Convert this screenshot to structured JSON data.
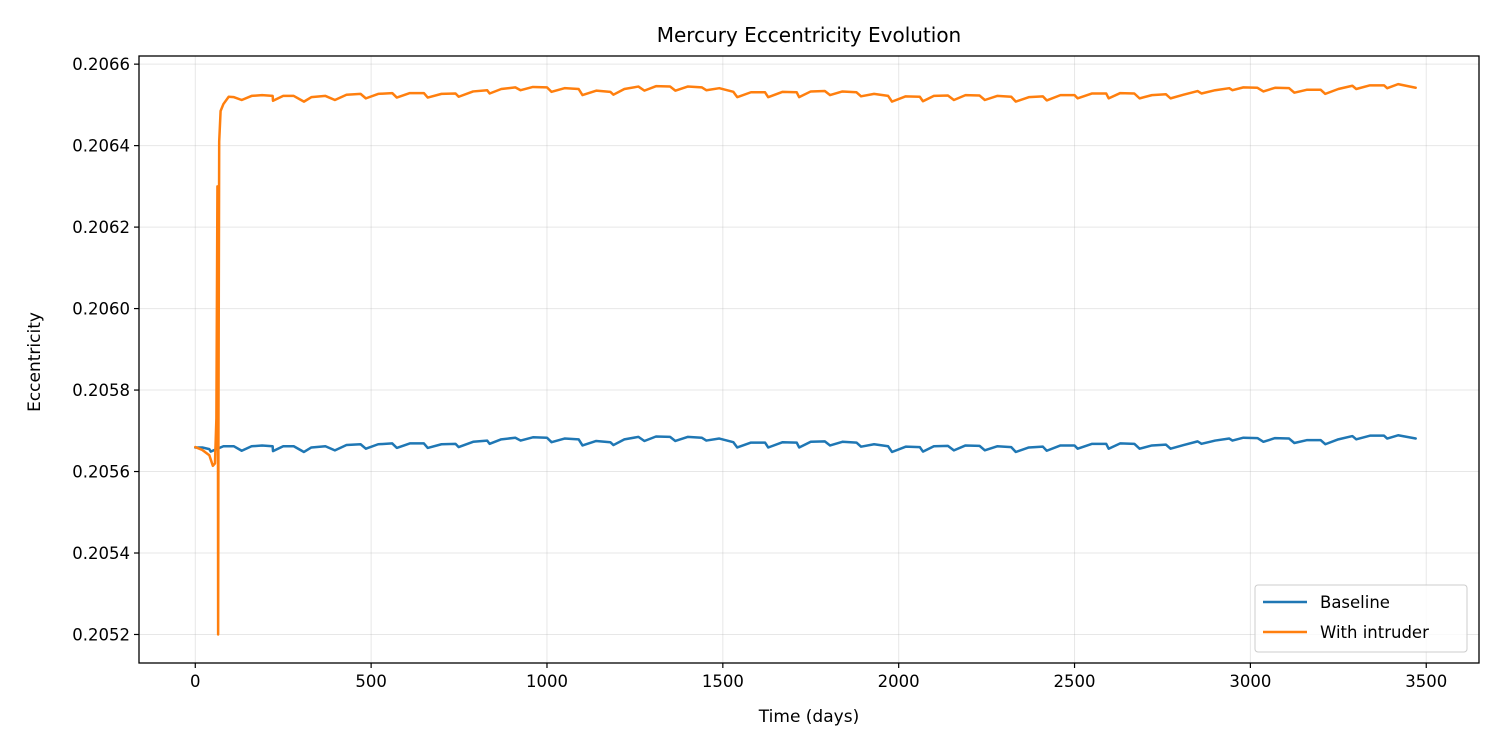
{
  "chart_data": {
    "type": "line",
    "title": "Mercury Eccentricity Evolution",
    "xlabel": "Time (days)",
    "ylabel": "Eccentricity",
    "xlim": [
      -160,
      3650
    ],
    "ylim": [
      0.20513,
      0.20662
    ],
    "xticks": [
      0,
      500,
      1000,
      1500,
      2000,
      2500,
      3000,
      3500
    ],
    "yticks": [
      0.2052,
      0.2054,
      0.2056,
      0.2058,
      0.206,
      0.2062,
      0.2064,
      0.2066
    ],
    "xtick_labels": [
      "0",
      "500",
      "1000",
      "1500",
      "2000",
      "2500",
      "3000",
      "3500"
    ],
    "ytick_labels": [
      "0.2052",
      "0.2054",
      "0.2056",
      "0.2058",
      "0.2060",
      "0.2062",
      "0.2064",
      "0.2066"
    ],
    "grid": true,
    "legend_position": "lower-right",
    "series": [
      {
        "name": "Baseline",
        "color": "#1f77b4",
        "x": [
          0,
          20,
          40,
          44,
          80,
          110,
          132,
          160,
          190,
          220,
          221,
          250,
          280,
          309,
          330,
          370,
          397,
          430,
          470,
          485,
          520,
          560,
          573,
          610,
          650,
          661,
          700,
          740,
          749,
          790,
          830,
          837,
          870,
          910,
          925,
          960,
          1000,
          1013,
          1050,
          1090,
          1101,
          1140,
          1180,
          1189,
          1220,
          1260,
          1277,
          1310,
          1350,
          1365,
          1400,
          1440,
          1453,
          1490,
          1530,
          1541,
          1580,
          1620,
          1629,
          1670,
          1710,
          1717,
          1750,
          1790,
          1805,
          1840,
          1880,
          1893,
          1930,
          1970,
          1981,
          2020,
          2060,
          2069,
          2100,
          2140,
          2157,
          2190,
          2230,
          2245,
          2280,
          2320,
          2333,
          2370,
          2410,
          2421,
          2460,
          2500,
          2509,
          2550,
          2590,
          2597,
          2630,
          2670,
          2685,
          2720,
          2760,
          2773,
          2810,
          2850,
          2861,
          2900,
          2940,
          2949,
          2980,
          3020,
          3037,
          3070,
          3110,
          3125,
          3160,
          3200,
          3213,
          3250,
          3290,
          3301,
          3340,
          3380,
          3389,
          3420,
          3470
        ],
        "y": [
          0.205659,
          0.205659,
          0.205655,
          0.205649,
          0.205662,
          0.205662,
          0.205651,
          0.205662,
          0.205664,
          0.205662,
          0.20565,
          0.205662,
          0.205662,
          0.205648,
          0.205659,
          0.205662,
          0.205652,
          0.205665,
          0.205667,
          0.205656,
          0.205667,
          0.205669,
          0.205658,
          0.205669,
          0.205669,
          0.205658,
          0.205667,
          0.205668,
          0.20566,
          0.205673,
          0.205676,
          0.205668,
          0.205679,
          0.205683,
          0.205676,
          0.205684,
          0.205683,
          0.205672,
          0.205681,
          0.205679,
          0.205664,
          0.205675,
          0.205672,
          0.205665,
          0.205679,
          0.205685,
          0.205675,
          0.205686,
          0.205685,
          0.205675,
          0.205685,
          0.205683,
          0.205676,
          0.205681,
          0.205672,
          0.205659,
          0.205671,
          0.205671,
          0.205659,
          0.205672,
          0.205671,
          0.205659,
          0.205673,
          0.205674,
          0.205664,
          0.205673,
          0.205671,
          0.205661,
          0.205667,
          0.205662,
          0.205648,
          0.205661,
          0.20566,
          0.205649,
          0.205662,
          0.205663,
          0.205652,
          0.205664,
          0.205663,
          0.205652,
          0.205662,
          0.20566,
          0.205648,
          0.205659,
          0.205661,
          0.205651,
          0.205664,
          0.205664,
          0.205656,
          0.205668,
          0.205668,
          0.205656,
          0.205669,
          0.205668,
          0.205656,
          0.205664,
          0.205666,
          0.205656,
          0.205665,
          0.205674,
          0.205668,
          0.205676,
          0.205681,
          0.205676,
          0.205683,
          0.205682,
          0.205673,
          0.205682,
          0.205681,
          0.20567,
          0.205677,
          0.205677,
          0.205667,
          0.205679,
          0.205687,
          0.205679,
          0.205688,
          0.205688,
          0.205681,
          0.205689,
          0.205681
        ]
      },
      {
        "name": "With intruder",
        "color": "#ff7f0e",
        "x": [
          0,
          20,
          40,
          50,
          56,
          60,
          63,
          64,
          65,
          66,
          68,
          72,
          80,
          95,
          110,
          132,
          160,
          190,
          220,
          221,
          250,
          280,
          309,
          330,
          370,
          397,
          430,
          470,
          485,
          520,
          560,
          573,
          610,
          650,
          661,
          700,
          740,
          749,
          790,
          830,
          837,
          870,
          910,
          925,
          960,
          1000,
          1013,
          1050,
          1090,
          1101,
          1140,
          1180,
          1189,
          1220,
          1260,
          1277,
          1310,
          1350,
          1365,
          1400,
          1440,
          1453,
          1490,
          1530,
          1541,
          1580,
          1620,
          1629,
          1670,
          1710,
          1717,
          1750,
          1790,
          1805,
          1840,
          1880,
          1893,
          1930,
          1970,
          1981,
          2020,
          2060,
          2069,
          2100,
          2140,
          2157,
          2190,
          2230,
          2245,
          2280,
          2320,
          2333,
          2370,
          2410,
          2421,
          2460,
          2500,
          2509,
          2550,
          2590,
          2597,
          2630,
          2670,
          2685,
          2720,
          2760,
          2773,
          2810,
          2850,
          2861,
          2900,
          2940,
          2949,
          2980,
          3020,
          3037,
          3070,
          3110,
          3125,
          3160,
          3200,
          3213,
          3250,
          3290,
          3301,
          3340,
          3380,
          3389,
          3420,
          3470
        ],
        "y": [
          0.20566,
          0.205653,
          0.20564,
          0.205614,
          0.20562,
          0.20573,
          0.2063,
          0.20625,
          0.2052,
          0.20575,
          0.20641,
          0.206485,
          0.206502,
          0.20652,
          0.206519,
          0.206512,
          0.206522,
          0.206524,
          0.206522,
          0.20651,
          0.206522,
          0.206522,
          0.206508,
          0.206519,
          0.206522,
          0.206512,
          0.206525,
          0.206527,
          0.206516,
          0.206527,
          0.206529,
          0.206518,
          0.206529,
          0.206529,
          0.206518,
          0.206527,
          0.206528,
          0.20652,
          0.206533,
          0.206536,
          0.206528,
          0.206539,
          0.206543,
          0.206536,
          0.206544,
          0.206543,
          0.206532,
          0.206541,
          0.206539,
          0.206524,
          0.206535,
          0.206532,
          0.206525,
          0.206539,
          0.206545,
          0.206535,
          0.206546,
          0.206545,
          0.206535,
          0.206545,
          0.206543,
          0.206536,
          0.206541,
          0.206532,
          0.206519,
          0.206531,
          0.206531,
          0.206519,
          0.206532,
          0.206531,
          0.206519,
          0.206533,
          0.206534,
          0.206524,
          0.206533,
          0.206531,
          0.206521,
          0.206527,
          0.206522,
          0.206508,
          0.206521,
          0.20652,
          0.206509,
          0.206522,
          0.206523,
          0.206512,
          0.206524,
          0.206523,
          0.206512,
          0.206522,
          0.20652,
          0.206508,
          0.206519,
          0.206521,
          0.206511,
          0.206524,
          0.206524,
          0.206516,
          0.206528,
          0.206528,
          0.206516,
          0.206529,
          0.206528,
          0.206516,
          0.206524,
          0.206526,
          0.206516,
          0.206525,
          0.206534,
          0.206528,
          0.206536,
          0.206541,
          0.206536,
          0.206543,
          0.206542,
          0.206533,
          0.206542,
          0.206541,
          0.20653,
          0.206537,
          0.206537,
          0.206527,
          0.206539,
          0.206547,
          0.206539,
          0.206548,
          0.206548,
          0.206541,
          0.206551,
          0.206542
        ]
      }
    ]
  }
}
